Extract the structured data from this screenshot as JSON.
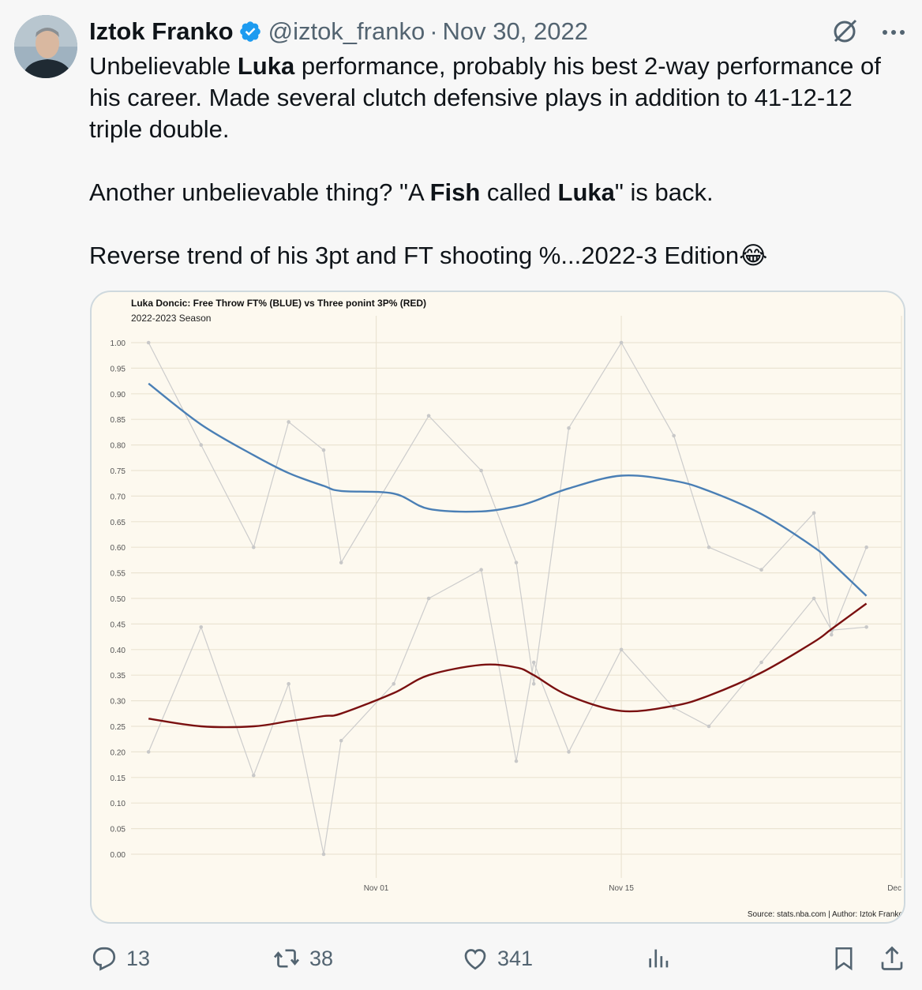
{
  "tweet": {
    "author_name": "Iztok Franko",
    "handle": "@iztok_franko",
    "date": "Nov 30, 2022",
    "text_segments": [
      {
        "t": "Unbelievable ",
        "b": false
      },
      {
        "t": "Luka",
        "b": true
      },
      {
        "t": " performance, probably his best 2-way performance of his career. Made several clutch defensive plays in addition to 41-12-12 triple double.\n\nAnother unbelievable thing? \"A ",
        "b": false
      },
      {
        "t": "Fish",
        "b": true
      },
      {
        "t": " called ",
        "b": false
      },
      {
        "t": "Luka",
        "b": true
      },
      {
        "t": "\" is back.\n\nReverse trend of his 3pt and FT shooting %...2022-3 Edition😂",
        "b": false
      }
    ]
  },
  "icons": {
    "verified": "verified-badge-icon",
    "grok": "grok-icon",
    "more": "more-icon",
    "reply": "reply-icon",
    "retweet": "retweet-icon",
    "like": "like-icon",
    "views": "views-icon",
    "bookmark": "bookmark-icon",
    "share": "share-icon"
  },
  "actions": {
    "replies": "13",
    "retweets": "38",
    "likes": "341"
  },
  "colors": {
    "accent_verified": "#1d9bf0",
    "ft_trend": "#4a7fb5",
    "threept_trend": "#7a1010",
    "raw_points": "#cccccc",
    "chart_bg": "#fdf9ef"
  },
  "chart_data": {
    "type": "line",
    "title": "Luka Doncic: Free Throw FT% (BLUE) vs Three ponint 3P% (RED)",
    "subtitle": "2022-2023 Season",
    "caption": "Source: stats.nba.com | Author: Iztok Franko",
    "xlabel": "",
    "ylabel": "",
    "x_ticks": [
      "Nov 01",
      "Nov 15",
      "Dec"
    ],
    "x_tick_dates": [
      "2022-11-01",
      "2022-11-15",
      "2022-12-01"
    ],
    "y_ticks": [
      "0.00",
      "0.05",
      "0.10",
      "0.15",
      "0.20",
      "0.25",
      "0.30",
      "0.35",
      "0.40",
      "0.45",
      "0.50",
      "0.55",
      "0.60",
      "0.65",
      "0.70",
      "0.75",
      "0.80",
      "0.85",
      "0.90",
      "0.95",
      "1.00"
    ],
    "ylim": [
      0,
      1
    ],
    "xlim": [
      "2022-10-18",
      "2022-12-01"
    ],
    "grid": true,
    "x": [
      "2022-10-19",
      "2022-10-22",
      "2022-10-25",
      "2022-10-27",
      "2022-10-29",
      "2022-10-30",
      "2022-11-02",
      "2022-11-04",
      "2022-11-07",
      "2022-11-09",
      "2022-11-10",
      "2022-11-12",
      "2022-11-15",
      "2022-11-18",
      "2022-11-20",
      "2022-11-23",
      "2022-11-26",
      "2022-11-27",
      "2022-11-29"
    ],
    "series": [
      {
        "role": "FT% raw",
        "values": [
          1.0,
          0.8,
          0.6,
          0.845,
          0.79,
          0.57,
          null,
          0.857,
          0.75,
          0.57,
          0.333,
          0.833,
          1.0,
          0.818,
          0.6,
          0.556,
          0.667,
          0.429,
          0.6
        ]
      },
      {
        "role": "3P% raw",
        "values": [
          0.2,
          0.444,
          0.154,
          0.333,
          0.0,
          0.222,
          0.333,
          0.5,
          0.556,
          0.182,
          0.375,
          0.2,
          0.4,
          0.286,
          0.25,
          0.375,
          0.5,
          0.438,
          0.444
        ]
      },
      {
        "role": "FT% trend",
        "values": [
          0.92,
          0.84,
          0.78,
          0.745,
          0.72,
          0.71,
          0.705,
          0.675,
          0.67,
          0.68,
          0.69,
          0.715,
          0.74,
          0.73,
          0.71,
          0.665,
          0.6,
          0.57,
          0.505
        ]
      },
      {
        "role": "3P% trend",
        "values": [
          0.265,
          0.25,
          0.25,
          0.26,
          0.27,
          0.275,
          0.315,
          0.35,
          0.37,
          0.365,
          0.35,
          0.31,
          0.28,
          0.29,
          0.31,
          0.355,
          0.415,
          0.44,
          0.49
        ]
      }
    ]
  }
}
